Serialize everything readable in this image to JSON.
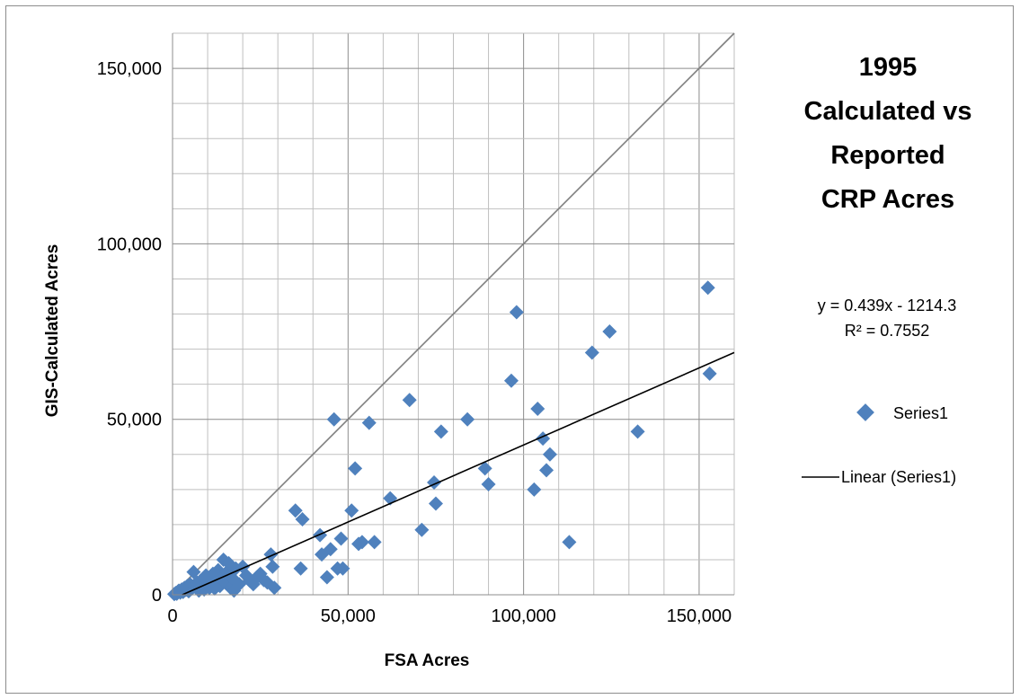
{
  "chart_data": {
    "type": "scatter",
    "title_lines": [
      "1995",
      "Calculated vs",
      "Reported",
      "CRP Acres"
    ],
    "xlabel": "FSA Acres",
    "ylabel": "GIS-Calculated Acres",
    "xlim": [
      0,
      160000
    ],
    "ylim": [
      0,
      160000
    ],
    "x_ticks": [
      0,
      50000,
      100000,
      150000
    ],
    "x_tick_labels": [
      "0",
      "50,000",
      "100,000",
      "150,000"
    ],
    "y_ticks": [
      0,
      50000,
      100000,
      150000
    ],
    "y_tick_labels": [
      "0",
      "50,000",
      "100,000",
      "150,000"
    ],
    "grid": true,
    "legend_position": "right",
    "trendline_equation": "y = 0.439x - 1214.3",
    "trendline_r2": "R² = 0.7552",
    "trendline": {
      "slope": 0.439,
      "intercept": -1214.3
    },
    "reference_line": {
      "slope": 1,
      "intercept": 0
    },
    "series": [
      {
        "name": "Series1",
        "color": "#4f81bd",
        "points": [
          [
            500,
            200
          ],
          [
            900,
            500
          ],
          [
            1200,
            300
          ],
          [
            1500,
            900
          ],
          [
            1800,
            1200
          ],
          [
            2200,
            600
          ],
          [
            2600,
            1500
          ],
          [
            3000,
            800
          ],
          [
            3400,
            2000
          ],
          [
            3800,
            1400
          ],
          [
            4200,
            2500
          ],
          [
            4600,
            1000
          ],
          [
            5000,
            3000
          ],
          [
            5500,
            1800
          ],
          [
            6000,
            6500
          ],
          [
            6500,
            2200
          ],
          [
            7000,
            3500
          ],
          [
            7500,
            1200
          ],
          [
            8000,
            4000
          ],
          [
            8500,
            2800
          ],
          [
            9000,
            1500
          ],
          [
            9500,
            5500
          ],
          [
            10000,
            3200
          ],
          [
            10500,
            2000
          ],
          [
            11000,
            4500
          ],
          [
            11500,
            6000
          ],
          [
            12000,
            1800
          ],
          [
            12500,
            3800
          ],
          [
            13000,
            7000
          ],
          [
            13500,
            2500
          ],
          [
            14000,
            5000
          ],
          [
            14500,
            10000
          ],
          [
            15000,
            3500
          ],
          [
            15500,
            6500
          ],
          [
            16000,
            9000
          ],
          [
            16500,
            2000
          ],
          [
            17000,
            4800
          ],
          [
            17500,
            1200
          ],
          [
            18000,
            7500
          ],
          [
            19000,
            3000
          ],
          [
            20000,
            8000
          ],
          [
            21000,
            5500
          ],
          [
            22000,
            4000
          ],
          [
            23000,
            3000
          ],
          [
            24000,
            5000
          ],
          [
            25000,
            6000
          ],
          [
            26000,
            4200
          ],
          [
            27000,
            3500
          ],
          [
            28000,
            11500
          ],
          [
            28500,
            8000
          ],
          [
            29000,
            2000
          ],
          [
            35000,
            24000
          ],
          [
            36500,
            7500
          ],
          [
            37000,
            21500
          ],
          [
            42000,
            17000
          ],
          [
            42500,
            11500
          ],
          [
            44000,
            5000
          ],
          [
            45000,
            13000
          ],
          [
            46000,
            50000
          ],
          [
            47000,
            7500
          ],
          [
            48000,
            16000
          ],
          [
            48500,
            7500
          ],
          [
            51000,
            24000
          ],
          [
            52000,
            36000
          ],
          [
            53000,
            14500
          ],
          [
            54000,
            15000
          ],
          [
            56000,
            49000
          ],
          [
            57500,
            15000
          ],
          [
            62000,
            27500
          ],
          [
            67500,
            55500
          ],
          [
            71000,
            18500
          ],
          [
            74500,
            32000
          ],
          [
            75000,
            26000
          ],
          [
            76500,
            46500
          ],
          [
            84000,
            50000
          ],
          [
            89000,
            36000
          ],
          [
            90000,
            31500
          ],
          [
            96500,
            61000
          ],
          [
            98000,
            80500
          ],
          [
            103000,
            30000
          ],
          [
            104000,
            53000
          ],
          [
            105500,
            44500
          ],
          [
            106500,
            35500
          ],
          [
            107500,
            40000
          ],
          [
            113000,
            15000
          ],
          [
            119500,
            69000
          ],
          [
            124500,
            75000
          ],
          [
            132500,
            46500
          ],
          [
            152500,
            87500
          ],
          [
            153000,
            63000
          ]
        ]
      }
    ],
    "legend": {
      "items": [
        {
          "label": "Series1",
          "kind": "marker",
          "color": "#4f81bd"
        },
        {
          "label": "Linear (Series1)",
          "kind": "line",
          "color": "#000000"
        }
      ]
    }
  }
}
